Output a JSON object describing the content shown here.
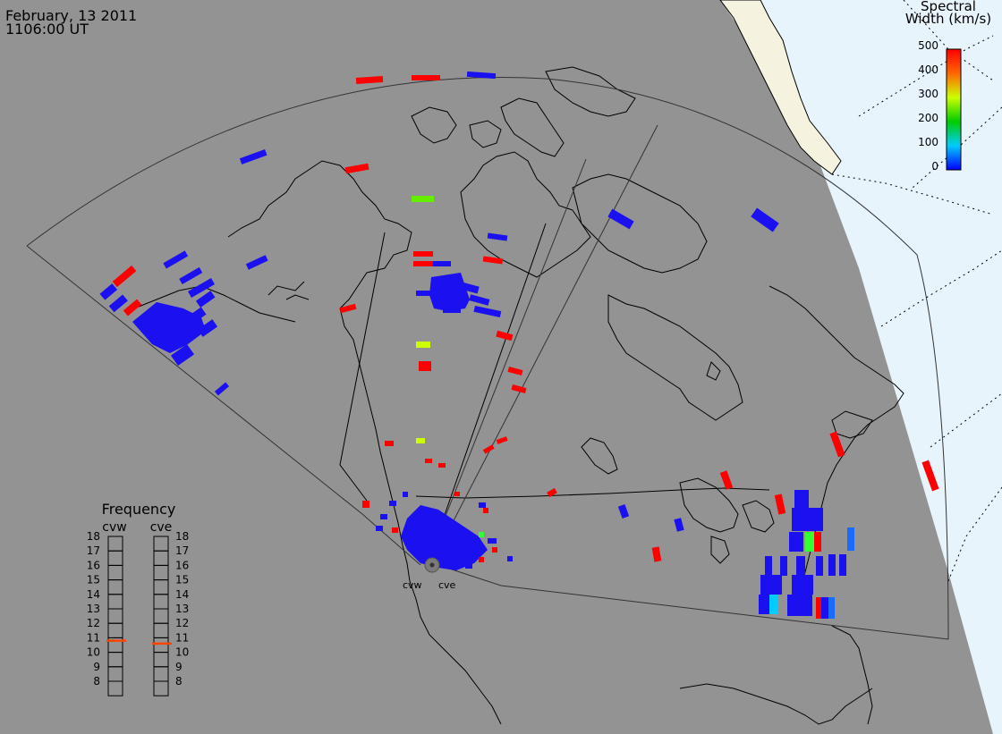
{
  "header": {
    "date": "February, 13 2011",
    "time": "1106:00 UT"
  },
  "spectral_legend": {
    "title_line1": "Spectral",
    "title_line2": "Width (km/s)",
    "ticks": [
      "500",
      "400",
      "300",
      "200",
      "100",
      "0"
    ],
    "colors": [
      "#ff0000",
      "#ff6600",
      "#ffcc00",
      "#00cc00",
      "#00ccff",
      "#0000ff"
    ]
  },
  "frequency_panel": {
    "title": "Frequency",
    "radars": [
      {
        "name": "cvw",
        "current": 10.8
      },
      {
        "name": "cve",
        "current": 10.6
      }
    ],
    "scale": [
      "18",
      "17",
      "16",
      "15",
      "14",
      "13",
      "12",
      "11",
      "10",
      "9",
      "8"
    ]
  },
  "radar_labels": [
    "cvw",
    "cve"
  ],
  "colors": {
    "background": "#939393",
    "ice_light": "#e8f4fb",
    "ice_dark": "#f5f2e0",
    "scatter_blue": "#1a10f0",
    "scatter_red": "#ff0000",
    "scatter_green": "#33ff33",
    "scatter_yellow": "#ccff00",
    "freq_marker": "#ff4400"
  }
}
